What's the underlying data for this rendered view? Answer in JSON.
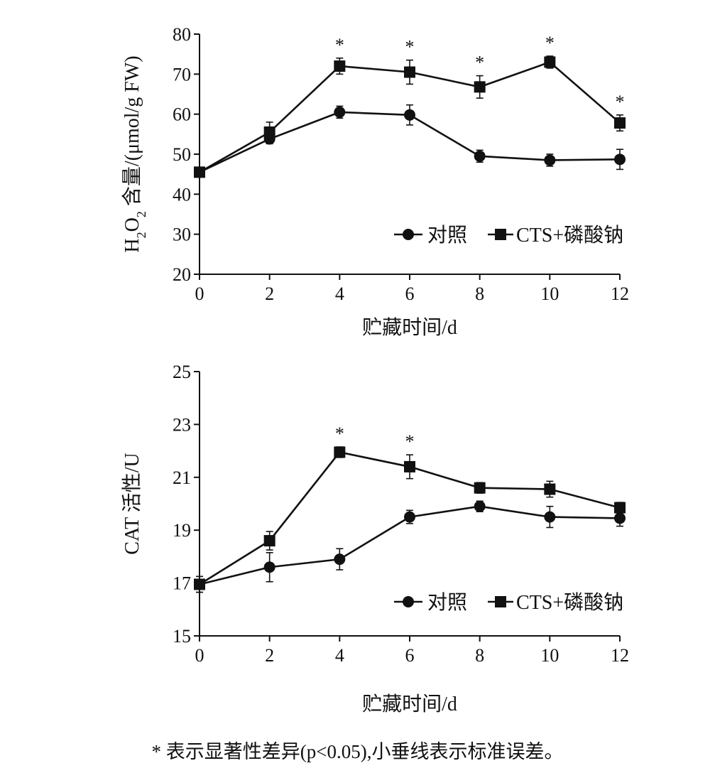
{
  "chart_data": [
    {
      "type": "line",
      "xlabel": "贮藏时间/d",
      "ylabel_parts": [
        "H",
        "2",
        "O",
        "2",
        " 含量/(μmol/g FW)"
      ],
      "x": [
        0,
        2,
        4,
        6,
        8,
        10,
        12
      ],
      "xlim": [
        0,
        12
      ],
      "ylim": [
        20,
        80
      ],
      "yticks": [
        20,
        30,
        40,
        50,
        60,
        70,
        80
      ],
      "legend_position": "bottom-right",
      "series": [
        {
          "name": "对照",
          "marker": "circle",
          "values": [
            45.5,
            53.8,
            60.5,
            59.8,
            49.5,
            48.5,
            48.7
          ],
          "errors": [
            1.0,
            1.2,
            1.5,
            2.5,
            1.5,
            1.5,
            2.5
          ]
        },
        {
          "name": "CTS+磷酸钠",
          "marker": "square",
          "values": [
            45.5,
            55.5,
            72.0,
            70.5,
            66.8,
            73.0,
            57.8
          ],
          "errors": [
            1.0,
            2.5,
            2.0,
            3.0,
            2.8,
            1.5,
            2.0
          ]
        }
      ],
      "significance": {
        "symbol": "*",
        "x": [
          4,
          6,
          8,
          10,
          12
        ]
      }
    },
    {
      "type": "line",
      "xlabel": "贮藏时间/d",
      "ylabel": "CAT 活性/U",
      "x": [
        0,
        2,
        4,
        6,
        8,
        10,
        12
      ],
      "xlim": [
        0,
        12
      ],
      "ylim": [
        15,
        25
      ],
      "yticks": [
        15,
        17,
        19,
        21,
        23,
        25
      ],
      "legend_position": "bottom-right",
      "series": [
        {
          "name": "对照",
          "marker": "circle",
          "values": [
            16.95,
            17.6,
            17.9,
            19.5,
            19.9,
            19.5,
            19.45
          ],
          "errors": [
            0.3,
            0.55,
            0.4,
            0.25,
            0.2,
            0.4,
            0.3
          ]
        },
        {
          "name": "CTS+磷酸钠",
          "marker": "square",
          "values": [
            16.95,
            18.6,
            21.95,
            21.4,
            20.6,
            20.55,
            19.85
          ],
          "errors": [
            0.3,
            0.35,
            0.2,
            0.45,
            0.2,
            0.3,
            0.2
          ]
        }
      ],
      "significance": {
        "symbol": "*",
        "x": [
          4,
          6
        ]
      }
    }
  ],
  "caption": "* 表示显著性差异(p<0.05),小垂线表示标准误差。"
}
